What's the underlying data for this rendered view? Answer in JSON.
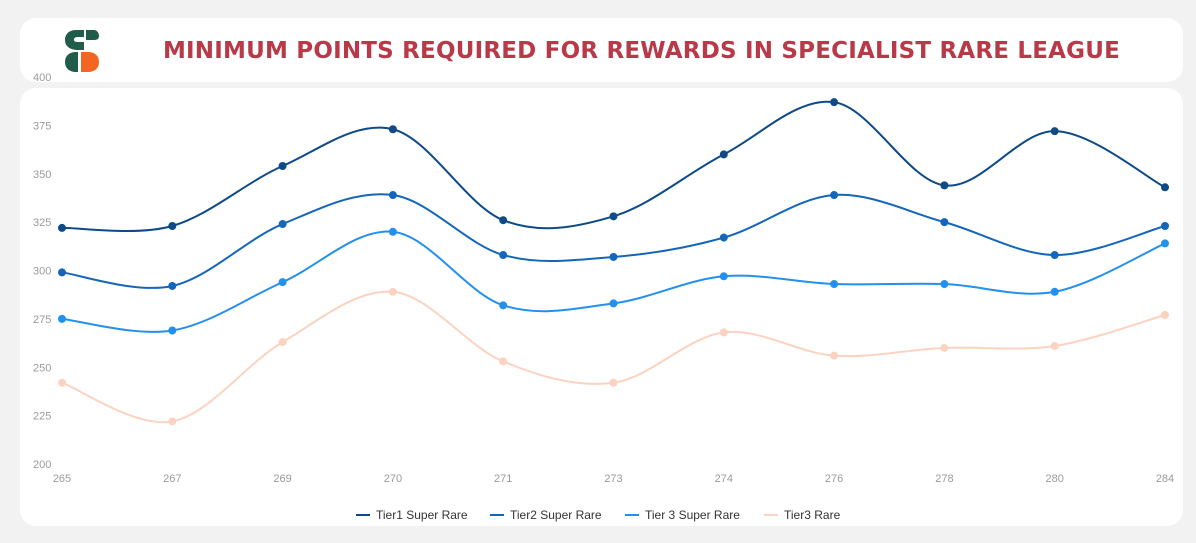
{
  "header": {
    "title": "MINIMUM POINTS REQUIRED FOR REWARDS IN SPECIALIST RARE LEAGUE",
    "logo_icon": "brand-s-logo-icon",
    "logo_colors": [
      "#1f5c4a",
      "#f26522"
    ]
  },
  "chart_data": {
    "type": "line",
    "title": "MINIMUM POINTS REQUIRED FOR REWARDS IN SPECIALIST RARE LEAGUE",
    "xlabel": "",
    "ylabel": "",
    "categories": [
      "265",
      "267",
      "269",
      "270",
      "271",
      "273",
      "274",
      "276",
      "278",
      "280",
      "284"
    ],
    "ylim": [
      200,
      400
    ],
    "yticks": [
      200,
      225,
      250,
      275,
      300,
      325,
      350,
      375,
      400
    ],
    "grid": false,
    "legend_position": "bottom-center",
    "smooth": true,
    "series": [
      {
        "name": "Tier1 Super Rare",
        "color": "#0d4a86",
        "values": [
          322,
          323,
          354,
          373,
          326,
          328,
          360,
          387,
          344,
          372,
          343
        ]
      },
      {
        "name": "Tier2 Super Rare",
        "color": "#1366b9",
        "values": [
          299,
          292,
          324,
          339,
          308,
          307,
          317,
          339,
          325,
          308,
          323
        ]
      },
      {
        "name": "Tier 3 Super Rare",
        "color": "#2490ee",
        "values": [
          275,
          269,
          294,
          320,
          282,
          283,
          297,
          293,
          293,
          289,
          314
        ]
      },
      {
        "name": "Tier3 Rare",
        "color": "#fbd3c0",
        "values": [
          242,
          222,
          263,
          289,
          253,
          242,
          268,
          256,
          260,
          261,
          277
        ]
      }
    ]
  }
}
